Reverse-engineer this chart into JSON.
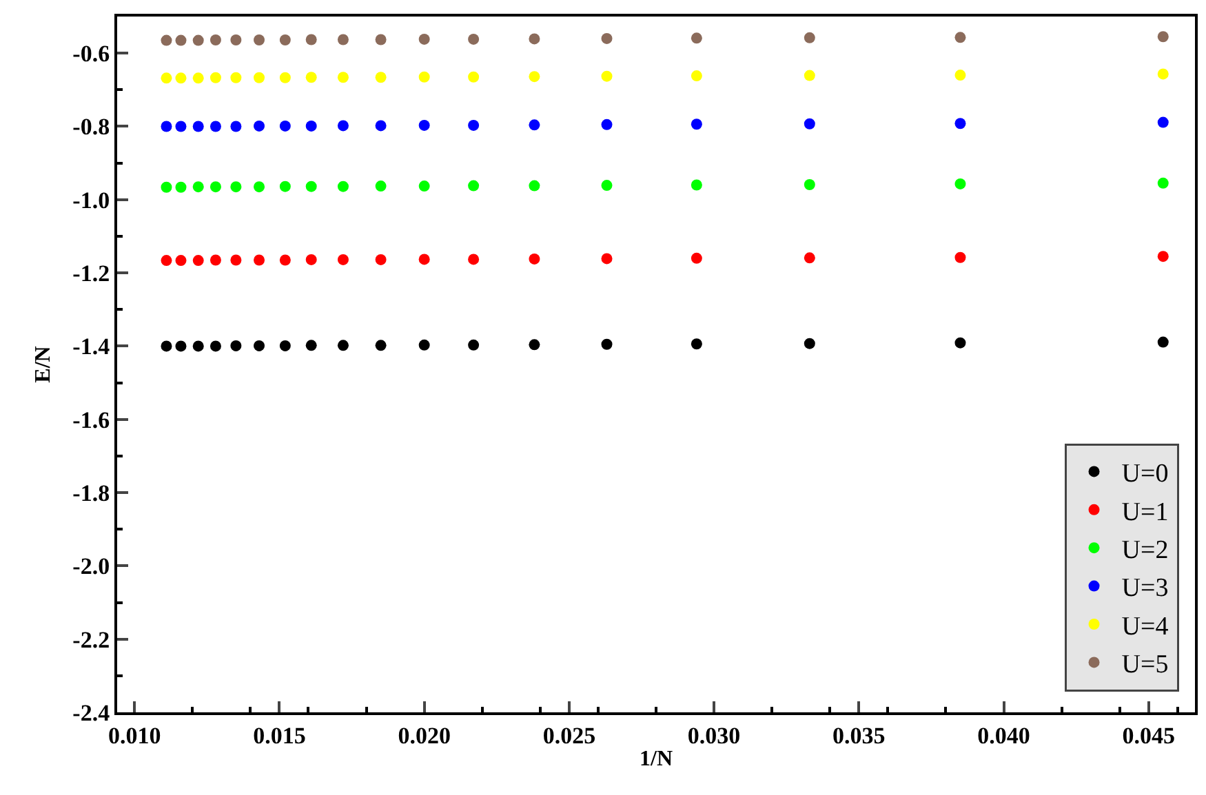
{
  "chart_data": {
    "type": "scatter",
    "xlabel": "1/N",
    "ylabel": "E/N",
    "marker": "circle",
    "grid": false,
    "legend": "bottom right",
    "x": [
      0.0111,
      0.0116,
      0.0122,
      0.0128,
      0.0135,
      0.0143,
      0.0152,
      0.0161,
      0.0172,
      0.0185,
      0.02,
      0.0217,
      0.0238,
      0.0263,
      0.0294,
      0.0333,
      0.0385,
      0.0455
    ],
    "xlim": [
      0.0094,
      0.0466
    ],
    "xticks": [
      {
        "value": 0.01,
        "label": "0.010"
      },
      0.015,
      {
        "value": 0.02,
        "label": "0.020"
      },
      0.025,
      {
        "value": 0.03,
        "label": "0.030"
      },
      0.035,
      {
        "value": 0.04,
        "label": "0.040"
      },
      0.045
    ],
    "ylim": [
      -2.4,
      -0.5
    ],
    "yticks": [
      -2.4,
      -2.2,
      {
        "value": -2,
        "label": "-2.0"
      },
      -1.8,
      -1.6,
      -1.4,
      -1.2,
      {
        "value": -1,
        "label": "-1.0"
      },
      -0.8,
      -0.6
    ],
    "series": [
      {
        "name": "U=0",
        "color": "#000000",
        "values": [
          -1.4,
          -1.4,
          -1.4,
          -1.4,
          -1.399,
          -1.399,
          -1.399,
          -1.398,
          -1.398,
          -1.398,
          -1.397,
          -1.397,
          -1.396,
          -1.395,
          -1.394,
          -1.393,
          -1.391,
          -1.389
        ]
      },
      {
        "name": "U=1",
        "color": "#ff0000",
        "values": [
          -1.166,
          -1.166,
          -1.166,
          -1.165,
          -1.165,
          -1.165,
          -1.165,
          -1.164,
          -1.164,
          -1.164,
          -1.163,
          -1.163,
          -1.162,
          -1.161,
          -1.16,
          -1.159,
          -1.158,
          -1.155
        ]
      },
      {
        "name": "U=2",
        "color": "#00ff00",
        "values": [
          -0.966,
          -0.966,
          -0.965,
          -0.965,
          -0.965,
          -0.965,
          -0.964,
          -0.964,
          -0.964,
          -0.963,
          -0.963,
          -0.962,
          -0.962,
          -0.961,
          -0.96,
          -0.959,
          -0.957,
          -0.955
        ]
      },
      {
        "name": "U=3",
        "color": "#0000ff",
        "values": [
          -0.8,
          -0.8,
          -0.8,
          -0.8,
          -0.8,
          -0.799,
          -0.799,
          -0.799,
          -0.798,
          -0.798,
          -0.797,
          -0.797,
          -0.796,
          -0.795,
          -0.794,
          -0.793,
          -0.792,
          -0.789
        ]
      },
      {
        "name": "U=4",
        "color": "#ffff00",
        "values": [
          -0.668,
          -0.668,
          -0.668,
          -0.667,
          -0.667,
          -0.667,
          -0.667,
          -0.666,
          -0.666,
          -0.666,
          -0.665,
          -0.665,
          -0.664,
          -0.663,
          -0.662,
          -0.661,
          -0.66,
          -0.657
        ]
      },
      {
        "name": "U=5",
        "color": "#8b6b5b",
        "values": [
          -0.565,
          -0.565,
          -0.565,
          -0.564,
          -0.564,
          -0.564,
          -0.564,
          -0.563,
          -0.563,
          -0.563,
          -0.562,
          -0.562,
          -0.561,
          -0.56,
          -0.559,
          -0.558,
          -0.557,
          -0.555
        ]
      }
    ]
  }
}
